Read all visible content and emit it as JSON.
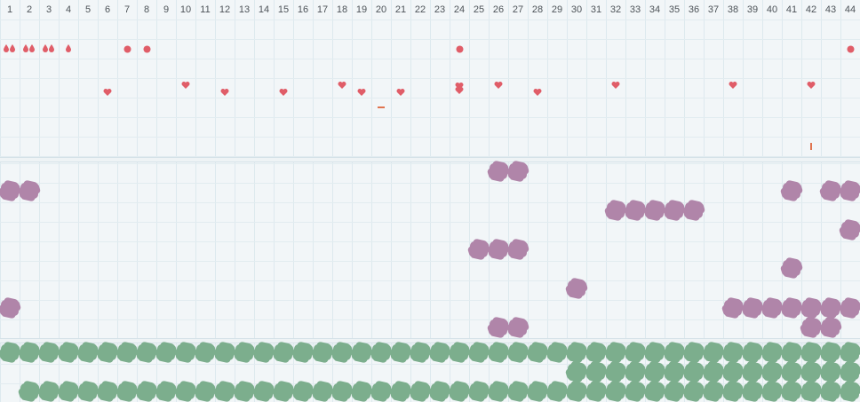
{
  "columns": [
    "1",
    "2",
    "3",
    "4",
    "5",
    "6",
    "7",
    "8",
    "9",
    "10",
    "11",
    "12",
    "13",
    "14",
    "15",
    "16",
    "17",
    "18",
    "19",
    "20",
    "21",
    "22",
    "23",
    "24",
    "25",
    "26",
    "27",
    "28",
    "29",
    "30",
    "31",
    "32",
    "33",
    "34",
    "35",
    "36",
    "37",
    "38",
    "39",
    "40",
    "41",
    "42",
    "43",
    "44"
  ],
  "colors": {
    "background": "#f2f6f8",
    "grid": "#dde9ee",
    "marker_red": "#e05d68",
    "tick_orange": "#e0744f",
    "cell_purple": "#b085a9",
    "cell_green": "#7cae8d"
  },
  "top_band": {
    "drop_pairs_row1": {
      "icon": "drop-icon",
      "columns": [
        1,
        2,
        3
      ]
    },
    "drop_single_row1": {
      "icon": "drop-icon",
      "columns": [
        4
      ]
    },
    "dots_row1": {
      "icon": "dot-icon",
      "columns": [
        7,
        8,
        24,
        44
      ]
    },
    "hearts": {
      "icon": "heart-icon",
      "columns": [
        6,
        10,
        12,
        15,
        18,
        19,
        21,
        24,
        26,
        28,
        32,
        38,
        42
      ]
    },
    "dash_column": 20,
    "tick_column": 42
  },
  "purple_band": {
    "rows": [
      [
        26,
        27
      ],
      [
        1,
        2,
        41,
        43,
        44
      ],
      [
        32,
        33,
        34,
        35,
        36
      ],
      [
        44
      ],
      [
        25,
        26,
        27
      ],
      [
        41
      ],
      [
        30
      ],
      [
        1,
        38,
        39,
        40,
        41,
        42,
        43,
        44
      ],
      [
        26,
        27,
        42,
        43
      ]
    ]
  },
  "green_band": {
    "rows": [
      [
        1,
        2,
        3,
        4,
        5,
        6,
        7,
        8,
        9,
        10,
        11,
        12,
        13,
        14,
        15,
        16,
        17,
        18,
        19,
        20,
        21,
        22,
        23,
        24,
        25,
        26,
        27,
        28,
        29,
        30,
        31,
        32,
        33,
        34,
        35,
        36,
        37,
        38,
        39,
        40,
        41,
        42,
        43,
        44
      ],
      [
        30,
        31,
        32,
        33,
        34,
        35,
        36,
        37,
        38,
        39,
        40,
        41,
        42,
        43,
        44
      ],
      [
        2,
        3,
        4,
        5,
        6,
        7,
        8,
        9,
        10,
        11,
        12,
        13,
        14,
        15,
        16,
        17,
        18,
        19,
        20,
        21,
        22,
        23,
        24,
        25,
        26,
        27,
        28,
        29,
        30,
        31,
        32,
        33,
        34,
        35,
        36,
        37,
        38,
        39,
        40,
        41,
        42,
        43,
        44
      ]
    ]
  }
}
